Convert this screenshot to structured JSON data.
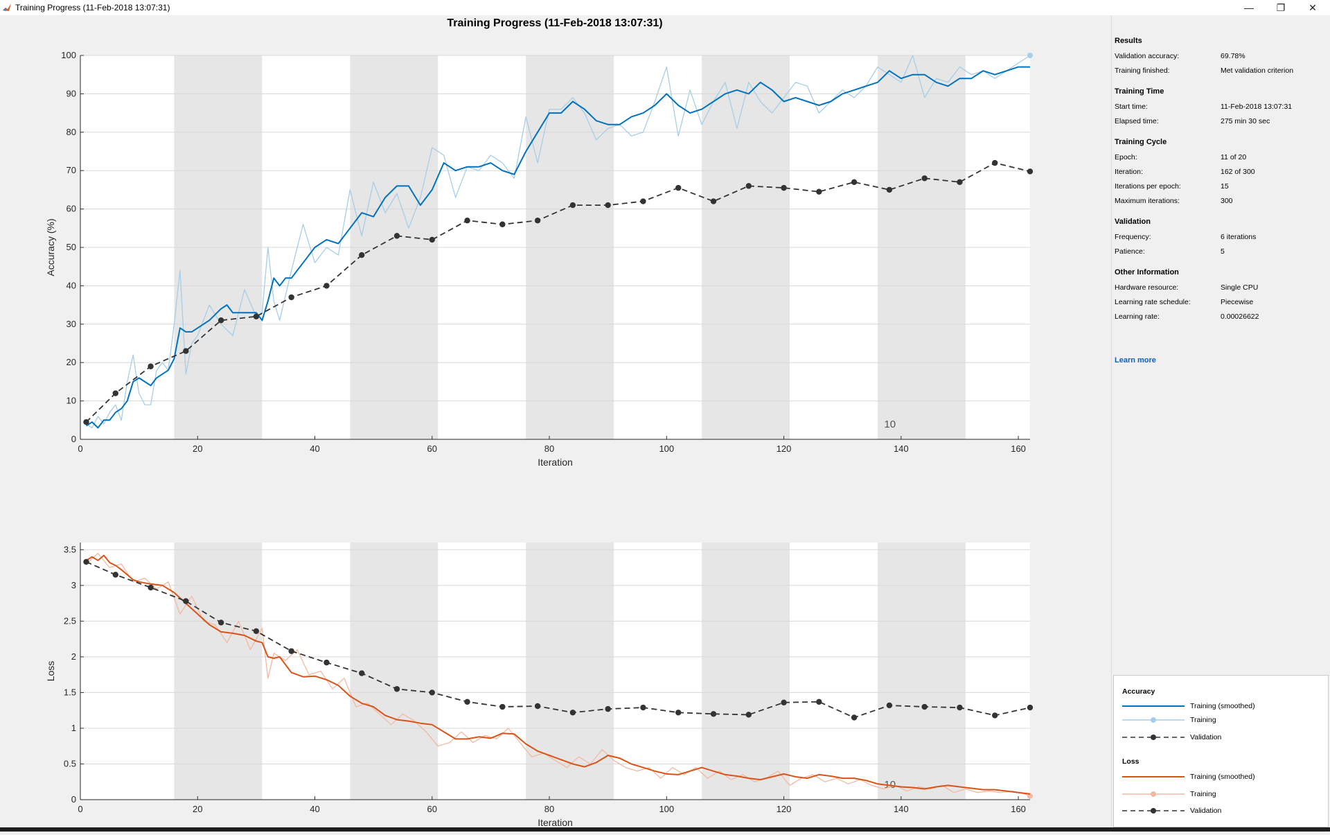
{
  "window": {
    "title": "Training Progress (11-Feb-2018 13:07:31)",
    "minimize_glyph": "—",
    "maximize_glyph": "❐",
    "close_glyph": "✕"
  },
  "figure_title": "Training Progress (11-Feb-2018 13:07:31)",
  "side_panel": {
    "results": {
      "title": "Results",
      "validation_accuracy_label": "Validation accuracy:",
      "validation_accuracy": "69.78%",
      "training_finished_label": "Training finished:",
      "training_finished": "Met validation criterion"
    },
    "training_time": {
      "title": "Training Time",
      "start_time_label": "Start time:",
      "start_time": "11-Feb-2018 13:07:31",
      "elapsed_time_label": "Elapsed time:",
      "elapsed_time": "275 min 30 sec"
    },
    "training_cycle": {
      "title": "Training Cycle",
      "epoch_label": "Epoch:",
      "epoch": "11 of 20",
      "iteration_label": "Iteration:",
      "iteration": "162 of 300",
      "iterations_per_epoch_label": "Iterations per epoch:",
      "iterations_per_epoch": "15",
      "max_iterations_label": "Maximum iterations:",
      "max_iterations": "300"
    },
    "validation": {
      "title": "Validation",
      "frequency_label": "Frequency:",
      "frequency": "6 iterations",
      "patience_label": "Patience:",
      "patience": "5"
    },
    "other": {
      "title": "Other Information",
      "hardware_label": "Hardware resource:",
      "hardware": "Single CPU",
      "lr_schedule_label": "Learning rate schedule:",
      "lr_schedule": "Piecewise",
      "lr_label": "Learning rate:",
      "lr": "0.00026622"
    },
    "learn_more": "Learn more"
  },
  "legend": {
    "accuracy_title": "Accuracy",
    "loss_title": "Loss",
    "training_smoothed": "Training (smoothed)",
    "training": "Training",
    "validation": "Validation"
  },
  "colors": {
    "acc_smoothed": "#0072bd",
    "acc_raw": "#a6cee8",
    "loss_smoothed": "#d95319",
    "loss_raw": "#f2b9a0",
    "validation": "#333333",
    "epoch_band": "#e6e6e6",
    "link": "#0b5fbf"
  },
  "chart_data": [
    {
      "type": "line",
      "xlabel": "Iteration",
      "ylabel": "Accuracy (%)",
      "xlim": [
        0,
        162
      ],
      "ylim": [
        0,
        100
      ],
      "xticks": [
        0,
        20,
        40,
        60,
        80,
        100,
        120,
        140,
        160
      ],
      "yticks": [
        0,
        10,
        20,
        30,
        40,
        50,
        60,
        70,
        80,
        90,
        100
      ],
      "grid": true,
      "epoch_bands": [
        [
          16,
          31
        ],
        [
          46,
          61
        ],
        [
          76,
          91
        ],
        [
          106,
          121
        ],
        [
          136,
          151
        ]
      ],
      "epoch_annotation": {
        "x": 137,
        "text": "10"
      },
      "series": [
        {
          "name": "Training (smoothed)",
          "style": "smoothed",
          "x": [
            1,
            2,
            3,
            4,
            5,
            6,
            7,
            8,
            9,
            10,
            11,
            12,
            13,
            14,
            15,
            16,
            17,
            18,
            19,
            20,
            22,
            24,
            25,
            26,
            28,
            30,
            31,
            32,
            33,
            34,
            35,
            36,
            37,
            38,
            40,
            42,
            44,
            46,
            48,
            50,
            52,
            54,
            56,
            58,
            60,
            62,
            64,
            66,
            68,
            70,
            72,
            74,
            76,
            78,
            80,
            82,
            84,
            86,
            88,
            90,
            92,
            94,
            96,
            98,
            100,
            102,
            104,
            106,
            108,
            110,
            112,
            114,
            116,
            118,
            120,
            122,
            124,
            126,
            128,
            130,
            132,
            134,
            136,
            138,
            140,
            142,
            144,
            146,
            148,
            150,
            152,
            154,
            156,
            158,
            160,
            162
          ],
          "y": [
            3.5,
            4.5,
            3,
            5,
            5,
            7,
            8,
            10,
            15,
            16,
            15,
            14,
            16,
            17,
            18,
            21,
            29,
            28,
            28,
            29,
            31,
            34,
            35,
            33,
            33,
            33,
            31,
            36,
            42,
            40,
            42,
            42,
            44,
            46,
            50,
            52,
            51,
            55,
            59,
            58,
            63,
            66,
            66,
            61,
            65,
            72,
            70,
            71,
            71,
            72,
            70,
            69,
            75,
            80,
            85,
            85,
            88,
            86,
            83,
            82,
            82,
            84,
            85,
            87,
            90,
            87,
            85,
            86,
            88,
            90,
            91,
            90,
            93,
            91,
            88,
            89,
            88,
            87,
            88,
            90,
            91,
            92,
            93,
            96,
            94,
            95,
            95,
            93,
            92,
            94,
            94,
            96,
            95,
            96,
            97,
            97
          ]
        },
        {
          "name": "Training",
          "style": "raw",
          "x": [
            1,
            2,
            3,
            4,
            5,
            6,
            7,
            8,
            9,
            10,
            11,
            12,
            13,
            14,
            15,
            16,
            17,
            18,
            19,
            20,
            22,
            24,
            26,
            28,
            30,
            31,
            32,
            33,
            34,
            36,
            38,
            40,
            42,
            44,
            46,
            48,
            50,
            52,
            54,
            56,
            58,
            60,
            62,
            64,
            66,
            68,
            70,
            72,
            74,
            76,
            78,
            80,
            82,
            84,
            86,
            88,
            90,
            92,
            94,
            96,
            98,
            100,
            102,
            104,
            106,
            108,
            110,
            112,
            114,
            116,
            118,
            120,
            122,
            124,
            126,
            128,
            130,
            132,
            134,
            136,
            138,
            140,
            142,
            144,
            146,
            148,
            150,
            152,
            154,
            156,
            158,
            160,
            162
          ],
          "y": [
            4,
            3,
            6,
            4,
            7,
            9,
            5,
            15,
            22,
            12,
            9,
            9,
            18,
            20,
            18,
            30,
            44,
            17,
            25,
            27,
            35,
            30,
            27,
            39,
            32,
            33,
            50,
            36,
            31,
            44,
            56,
            46,
            50,
            48,
            65,
            53,
            67,
            59,
            64,
            55,
            63,
            76,
            74,
            63,
            71,
            70,
            74,
            72,
            68,
            84,
            72,
            86,
            86,
            89,
            85,
            78,
            81,
            82,
            79,
            80,
            88,
            97,
            79,
            91,
            82,
            88,
            93,
            81,
            93,
            88,
            85,
            89,
            93,
            92,
            85,
            88,
            91,
            89,
            92,
            97,
            95,
            93,
            100,
            89,
            94,
            93,
            97,
            95,
            96,
            94,
            96,
            98,
            100
          ]
        },
        {
          "name": "Validation",
          "style": "validation",
          "x": [
            1,
            6,
            12,
            18,
            24,
            30,
            36,
            42,
            48,
            54,
            60,
            66,
            72,
            78,
            84,
            90,
            96,
            102,
            108,
            114,
            120,
            126,
            132,
            138,
            144,
            150,
            156,
            162
          ],
          "y": [
            4.5,
            12,
            19,
            23,
            31,
            32,
            37,
            40,
            48,
            53,
            52,
            57,
            56,
            57,
            61,
            61,
            62,
            65.5,
            62,
            66,
            65.5,
            64.5,
            67,
            65,
            68,
            67,
            72,
            69.78
          ]
        }
      ]
    },
    {
      "type": "line",
      "xlabel": "Iteration",
      "ylabel": "Loss",
      "xlim": [
        0,
        162
      ],
      "ylim": [
        0,
        3.6
      ],
      "xticks": [
        0,
        20,
        40,
        60,
        80,
        100,
        120,
        140,
        160
      ],
      "yticks": [
        0,
        0.5,
        1,
        1.5,
        2,
        2.5,
        3,
        3.5
      ],
      "grid": true,
      "epoch_bands": [
        [
          16,
          31
        ],
        [
          46,
          61
        ],
        [
          76,
          91
        ],
        [
          106,
          121
        ],
        [
          136,
          151
        ]
      ],
      "epoch_annotation": {
        "x": 137,
        "text": "10"
      },
      "series": [
        {
          "name": "Training (smoothed)",
          "style": "smoothed",
          "x": [
            1,
            2,
            3,
            4,
            5,
            6,
            7,
            8,
            9,
            10,
            12,
            14,
            16,
            18,
            20,
            22,
            24,
            26,
            28,
            30,
            31,
            32,
            33,
            34,
            36,
            38,
            40,
            42,
            44,
            46,
            48,
            50,
            52,
            54,
            56,
            58,
            60,
            62,
            64,
            66,
            68,
            70,
            72,
            74,
            76,
            78,
            80,
            82,
            84,
            86,
            88,
            90,
            92,
            94,
            96,
            98,
            100,
            102,
            104,
            106,
            108,
            110,
            112,
            114,
            116,
            118,
            120,
            122,
            124,
            126,
            128,
            130,
            132,
            134,
            136,
            138,
            140,
            142,
            144,
            146,
            148,
            150,
            152,
            154,
            156,
            158,
            160,
            162
          ],
          "y": [
            3.35,
            3.4,
            3.35,
            3.42,
            3.32,
            3.28,
            3.22,
            3.15,
            3.08,
            3.05,
            3.02,
            3.0,
            2.9,
            2.75,
            2.6,
            2.45,
            2.35,
            2.33,
            2.3,
            2.22,
            2.2,
            2.0,
            1.98,
            2.0,
            1.78,
            1.72,
            1.73,
            1.68,
            1.6,
            1.45,
            1.35,
            1.3,
            1.18,
            1.12,
            1.1,
            1.07,
            1.05,
            0.95,
            0.85,
            0.85,
            0.88,
            0.86,
            0.93,
            0.92,
            0.78,
            0.68,
            0.62,
            0.56,
            0.5,
            0.46,
            0.52,
            0.62,
            0.58,
            0.5,
            0.45,
            0.4,
            0.36,
            0.35,
            0.4,
            0.45,
            0.4,
            0.35,
            0.33,
            0.3,
            0.28,
            0.32,
            0.36,
            0.32,
            0.3,
            0.35,
            0.33,
            0.3,
            0.3,
            0.27,
            0.22,
            0.2,
            0.18,
            0.17,
            0.15,
            0.18,
            0.2,
            0.18,
            0.16,
            0.14,
            0.14,
            0.12,
            0.1,
            0.08
          ]
        },
        {
          "name": "Training",
          "style": "raw",
          "x": [
            1,
            3,
            5,
            7,
            9,
            11,
            13,
            15,
            17,
            19,
            21,
            23,
            25,
            27,
            29,
            31,
            32,
            33,
            35,
            37,
            39,
            41,
            43,
            45,
            47,
            49,
            51,
            53,
            55,
            57,
            59,
            61,
            63,
            65,
            67,
            69,
            71,
            73,
            75,
            77,
            79,
            81,
            83,
            85,
            87,
            89,
            91,
            93,
            95,
            97,
            99,
            101,
            103,
            105,
            107,
            109,
            111,
            113,
            115,
            117,
            119,
            121,
            123,
            125,
            127,
            129,
            131,
            133,
            135,
            137,
            139,
            141,
            143,
            145,
            147,
            149,
            151,
            153,
            155,
            157,
            159,
            161,
            162
          ],
          "y": [
            3.3,
            3.45,
            3.25,
            3.3,
            3.05,
            3.1,
            2.95,
            3.05,
            2.6,
            2.85,
            2.5,
            2.45,
            2.2,
            2.5,
            2.1,
            2.4,
            1.7,
            2.05,
            1.95,
            2.1,
            1.75,
            1.8,
            1.55,
            1.7,
            1.3,
            1.35,
            1.2,
            1.05,
            1.2,
            1.1,
            0.95,
            0.75,
            0.8,
            0.95,
            0.8,
            0.9,
            0.85,
            1.0,
            0.8,
            0.6,
            0.65,
            0.55,
            0.45,
            0.6,
            0.5,
            0.7,
            0.55,
            0.45,
            0.4,
            0.45,
            0.3,
            0.45,
            0.35,
            0.45,
            0.3,
            0.4,
            0.28,
            0.35,
            0.25,
            0.3,
            0.4,
            0.2,
            0.3,
            0.35,
            0.25,
            0.3,
            0.22,
            0.28,
            0.2,
            0.15,
            0.2,
            0.12,
            0.18,
            0.15,
            0.2,
            0.1,
            0.15,
            0.1,
            0.12,
            0.1,
            0.12,
            0.08,
            0.05
          ]
        },
        {
          "name": "Validation",
          "style": "validation",
          "x": [
            1,
            6,
            12,
            18,
            24,
            30,
            36,
            42,
            48,
            54,
            60,
            66,
            72,
            78,
            84,
            90,
            96,
            102,
            108,
            114,
            120,
            126,
            132,
            138,
            144,
            150,
            156,
            162
          ],
          "y": [
            3.33,
            3.15,
            2.97,
            2.78,
            2.48,
            2.36,
            2.08,
            1.92,
            1.77,
            1.55,
            1.5,
            1.37,
            1.3,
            1.31,
            1.22,
            1.27,
            1.29,
            1.22,
            1.2,
            1.19,
            1.36,
            1.37,
            1.15,
            1.32,
            1.3,
            1.29,
            1.18,
            1.29
          ]
        }
      ]
    }
  ]
}
